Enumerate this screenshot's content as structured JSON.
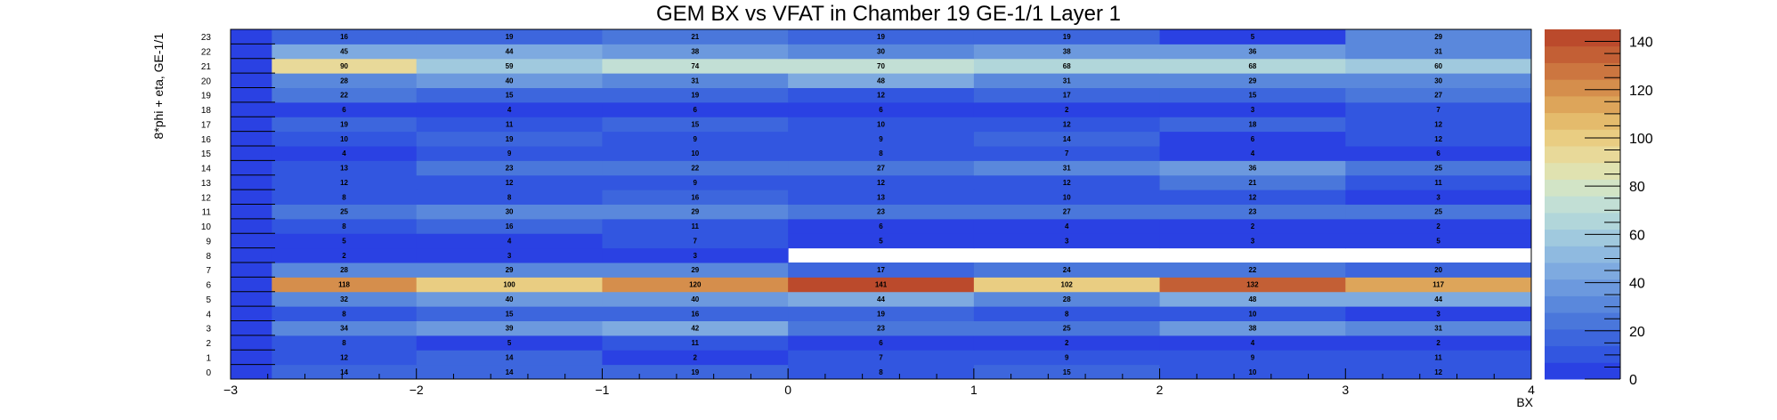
{
  "chart_data": {
    "type": "heatmap",
    "title": "GEM BX vs VFAT in Chamber 19 GE-1/1 Layer 1",
    "xlabel": "BX",
    "ylabel": "8*phi + eta, GE-1/1",
    "xlim": [
      -3,
      4
    ],
    "ylim": [
      0,
      24
    ],
    "zlim": [
      0,
      145
    ],
    "x_bin_edges": [
      -3,
      -2.778,
      -2,
      -1,
      0,
      1,
      2,
      3,
      4
    ],
    "x_ticks": [
      "−3",
      "−2",
      "−1",
      "0",
      "1",
      "2",
      "3",
      "4"
    ],
    "y_bins": [
      0,
      1,
      2,
      3,
      4,
      5,
      6,
      7,
      8,
      9,
      10,
      11,
      12,
      13,
      14,
      15,
      16,
      17,
      18,
      19,
      20,
      21,
      22,
      23
    ],
    "z_ticks": [
      "0",
      "20",
      "40",
      "60",
      "80",
      "100",
      "120",
      "140"
    ],
    "colorscale": [
      "#2a41e3",
      "#3256e0",
      "#3d66dd",
      "#4a77db",
      "#5a88dc",
      "#6c99de",
      "#7eaae0",
      "#8fbae0",
      "#a0c9de",
      "#b1d6da",
      "#c2dfd5",
      "#d2e4c6",
      "#e0e2b0",
      "#e8d999",
      "#e9cd82",
      "#e4bb6c",
      "#dda55a",
      "#d58e4c",
      "#cc7640",
      "#c35f35",
      "#bb4a2c"
    ],
    "values": [
      [
        0,
        14,
        14,
        19,
        8,
        15,
        10,
        12
      ],
      [
        0,
        12,
        14,
        2,
        7,
        9,
        9,
        11
      ],
      [
        0,
        8,
        5,
        11,
        6,
        2,
        4,
        2
      ],
      [
        0,
        34,
        39,
        42,
        23,
        25,
        38,
        31
      ],
      [
        0,
        8,
        15,
        16,
        19,
        8,
        10,
        3
      ],
      [
        0,
        32,
        40,
        40,
        44,
        28,
        48,
        44
      ],
      [
        0,
        118,
        100,
        120,
        141,
        102,
        132,
        117
      ],
      [
        0,
        28,
        29,
        29,
        17,
        24,
        22,
        20
      ],
      [
        0,
        2,
        3,
        3,
        null,
        null,
        null,
        null
      ],
      [
        0,
        5,
        4,
        7,
        5,
        3,
        3,
        5
      ],
      [
        0,
        8,
        16,
        11,
        6,
        4,
        2,
        2
      ],
      [
        0,
        25,
        30,
        29,
        23,
        27,
        23,
        25
      ],
      [
        0,
        8,
        8,
        16,
        13,
        10,
        12,
        3
      ],
      [
        0,
        12,
        12,
        9,
        12,
        12,
        21,
        11
      ],
      [
        0,
        13,
        23,
        22,
        27,
        31,
        36,
        25
      ],
      [
        0,
        4,
        9,
        10,
        8,
        7,
        4,
        6
      ],
      [
        0,
        10,
        19,
        9,
        9,
        14,
        6,
        12
      ],
      [
        0,
        19,
        11,
        15,
        10,
        12,
        18,
        12
      ],
      [
        0,
        6,
        4,
        6,
        6,
        2,
        3,
        7
      ],
      [
        0,
        22,
        15,
        19,
        12,
        17,
        15,
        27
      ],
      [
        0,
        28,
        40,
        31,
        48,
        31,
        29,
        30
      ],
      [
        0,
        90,
        59,
        74,
        70,
        68,
        68,
        60
      ],
      [
        0,
        45,
        44,
        38,
        30,
        38,
        36,
        31
      ],
      [
        0,
        16,
        19,
        21,
        19,
        19,
        5,
        29
      ]
    ],
    "labeled_columns": [
      1,
      2,
      3,
      4,
      5,
      6,
      7
    ],
    "grid": false,
    "legend": "colorbar-right"
  }
}
